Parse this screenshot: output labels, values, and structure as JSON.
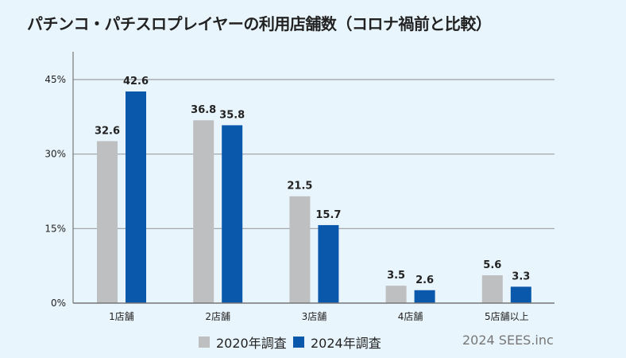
{
  "chart_data": {
    "type": "bar",
    "title": "パチンコ・パチスロプレイヤーの利用店舗数（コロナ禍前と比較）",
    "categories": [
      "1店舗",
      "2店舗",
      "3店舗",
      "4店舗",
      "5店舗以上"
    ],
    "series": [
      {
        "name": "2020年調査",
        "color": "#bdbfc1",
        "values": [
          32.6,
          36.8,
          21.5,
          3.5,
          5.6
        ]
      },
      {
        "name": "2024年調査",
        "color": "#0a58ab",
        "values": [
          42.6,
          35.8,
          15.7,
          2.6,
          3.3
        ]
      }
    ],
    "yticks": [
      "0%",
      "15%",
      "30%",
      "45%"
    ],
    "ytick_values": [
      0,
      15,
      30,
      45
    ],
    "ylim": [
      0,
      50
    ],
    "grid": true,
    "legend": "bottom",
    "xlabel": "",
    "ylabel": ""
  },
  "credit": "2024 SEES.inc"
}
